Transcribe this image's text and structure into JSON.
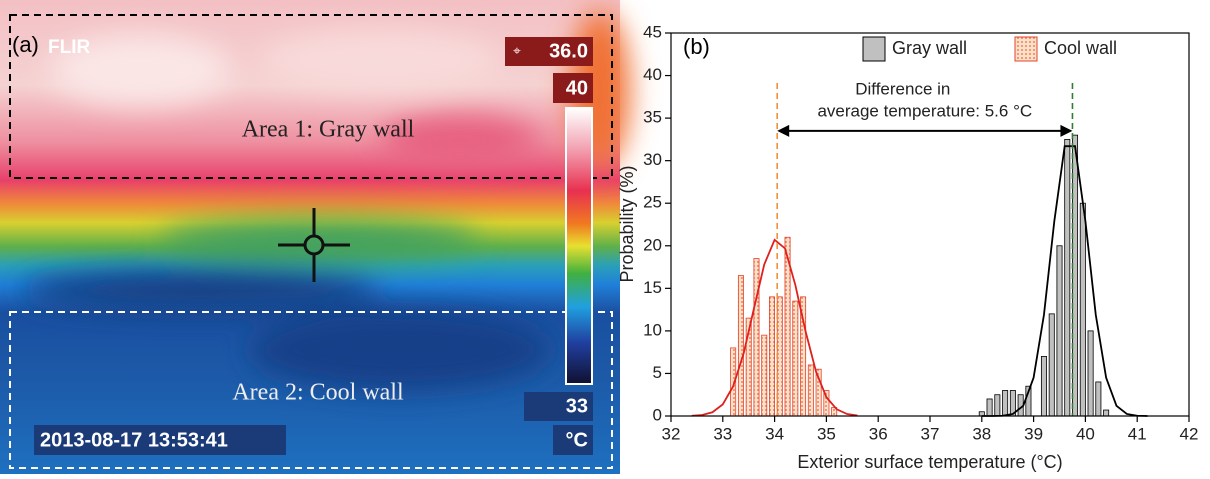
{
  "thermal_image": {
    "panel_label": "(a)",
    "logo": "FLIR",
    "readout": "36.0",
    "scale_max": "40",
    "scale_min": "33",
    "unit": "°C",
    "timestamp": "2013-08-17 13:53:41",
    "area1_label": "Area 1: Gray wall",
    "area2_label": "Area 2: Cool wall"
  },
  "chart_data": {
    "type": "bar",
    "panel_label": "(b)",
    "x_label": "Exterior surface temperature (°C)",
    "y_label": "Probability (%)",
    "xlim": [
      32,
      42
    ],
    "xticks": [
      32,
      33,
      34,
      35,
      36,
      37,
      38,
      39,
      40,
      41,
      42
    ],
    "ylim": [
      0,
      45
    ],
    "yticks": [
      0,
      5,
      10,
      15,
      20,
      25,
      30,
      35,
      40,
      45
    ],
    "bar_width": 0.1,
    "legend": "upper right",
    "series": [
      {
        "name": "Gray wall",
        "color": "#c0c0c0",
        "edgecolor": "#000000",
        "x": [
          38.0,
          38.15,
          38.3,
          38.45,
          38.6,
          38.75,
          38.9,
          39.2,
          39.35,
          39.5,
          39.65,
          39.8,
          39.95,
          40.1,
          40.25,
          40.4
        ],
        "values": [
          0.5,
          2,
          2.5,
          3,
          3,
          2.5,
          3.5,
          7,
          12,
          20,
          32.5,
          33,
          25,
          10,
          4,
          0.7
        ]
      },
      {
        "name": "Cool wall",
        "color": "#f9c9a8",
        "edgecolor": "#e0442c",
        "x": [
          33.2,
          33.35,
          33.5,
          33.65,
          33.8,
          33.95,
          34.1,
          34.25,
          34.4,
          34.55,
          34.7,
          34.85,
          35.0,
          35.15
        ],
        "values": [
          8,
          16.5,
          11.5,
          18.5,
          9.5,
          14,
          14,
          21,
          13.5,
          14,
          6,
          5.5,
          3,
          1
        ]
      }
    ],
    "fits": [
      {
        "color": "#e0201c",
        "x": [
          32.4,
          32.6,
          32.8,
          33.0,
          33.2,
          33.4,
          33.6,
          33.8,
          34.0,
          34.2,
          34.4,
          34.6,
          34.8,
          35.0,
          35.2,
          35.4,
          35.6
        ],
        "values": [
          0.03,
          0.12,
          0.44,
          1.37,
          3.5,
          7.3,
          12.6,
          17.8,
          20.7,
          19.7,
          15.4,
          9.9,
          5.2,
          2.2,
          0.79,
          0.23,
          0.06
        ]
      },
      {
        "color": "#000000",
        "x": [
          38.0,
          38.2,
          38.4,
          38.6,
          38.8,
          39.0,
          39.2,
          39.4,
          39.6,
          39.8,
          40.0,
          40.2,
          40.4,
          40.6,
          40.8,
          41.0,
          41.2
        ],
        "values": [
          0,
          0.003,
          0.03,
          0.24,
          1.2,
          4.5,
          11.9,
          22.9,
          31.7,
          31.7,
          22.9,
          11.9,
          4.5,
          1.2,
          0.24,
          0.03,
          0.003
        ]
      }
    ],
    "vlines": [
      {
        "x": 34.05,
        "color": "#f0903a"
      },
      {
        "x": 39.75,
        "color": "#2e7d32"
      }
    ],
    "arrow": {
      "x": [
        34.05,
        39.75
      ],
      "y": 33.5
    },
    "annotation": [
      "Difference in",
      "average temperature: 5.6 °C"
    ]
  }
}
